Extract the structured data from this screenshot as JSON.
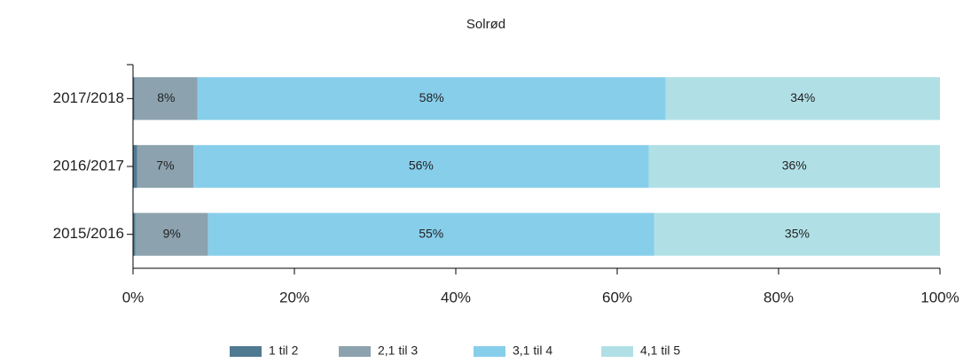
{
  "chart_data": {
    "type": "stacked-bar-horizontal",
    "title": "Solrød",
    "categories": [
      "2017/2018",
      "2016/2017",
      "2015/2016"
    ],
    "series": [
      {
        "name": "1 til 2",
        "color": "#4f7a92",
        "values": [
          0.2,
          0.5,
          0.3
        ]
      },
      {
        "name": "2,1 til 3",
        "color": "#8ca2ae",
        "values": [
          7.8,
          7.0,
          9.0
        ],
        "value_labels": [
          "8%",
          "7%",
          "9%"
        ]
      },
      {
        "name": "3,1 til 4",
        "color": "#87ceeb",
        "values": [
          58.0,
          56.4,
          55.3
        ],
        "value_labels": [
          "58%",
          "56%",
          "55%"
        ]
      },
      {
        "name": "4,1 til 5",
        "color": "#b0e0e6",
        "values": [
          34.0,
          36.1,
          35.4
        ],
        "value_labels": [
          "34%",
          "36%",
          "35%"
        ]
      }
    ],
    "xlim": [
      0,
      100
    ],
    "xticks": [
      {
        "value": 0,
        "label": "0%"
      },
      {
        "value": 20,
        "label": "20%"
      },
      {
        "value": 40,
        "label": "40%"
      },
      {
        "value": 60,
        "label": "60%"
      },
      {
        "value": 80,
        "label": "80%"
      },
      {
        "value": 100,
        "label": "100%"
      }
    ],
    "legend": "bottom"
  }
}
